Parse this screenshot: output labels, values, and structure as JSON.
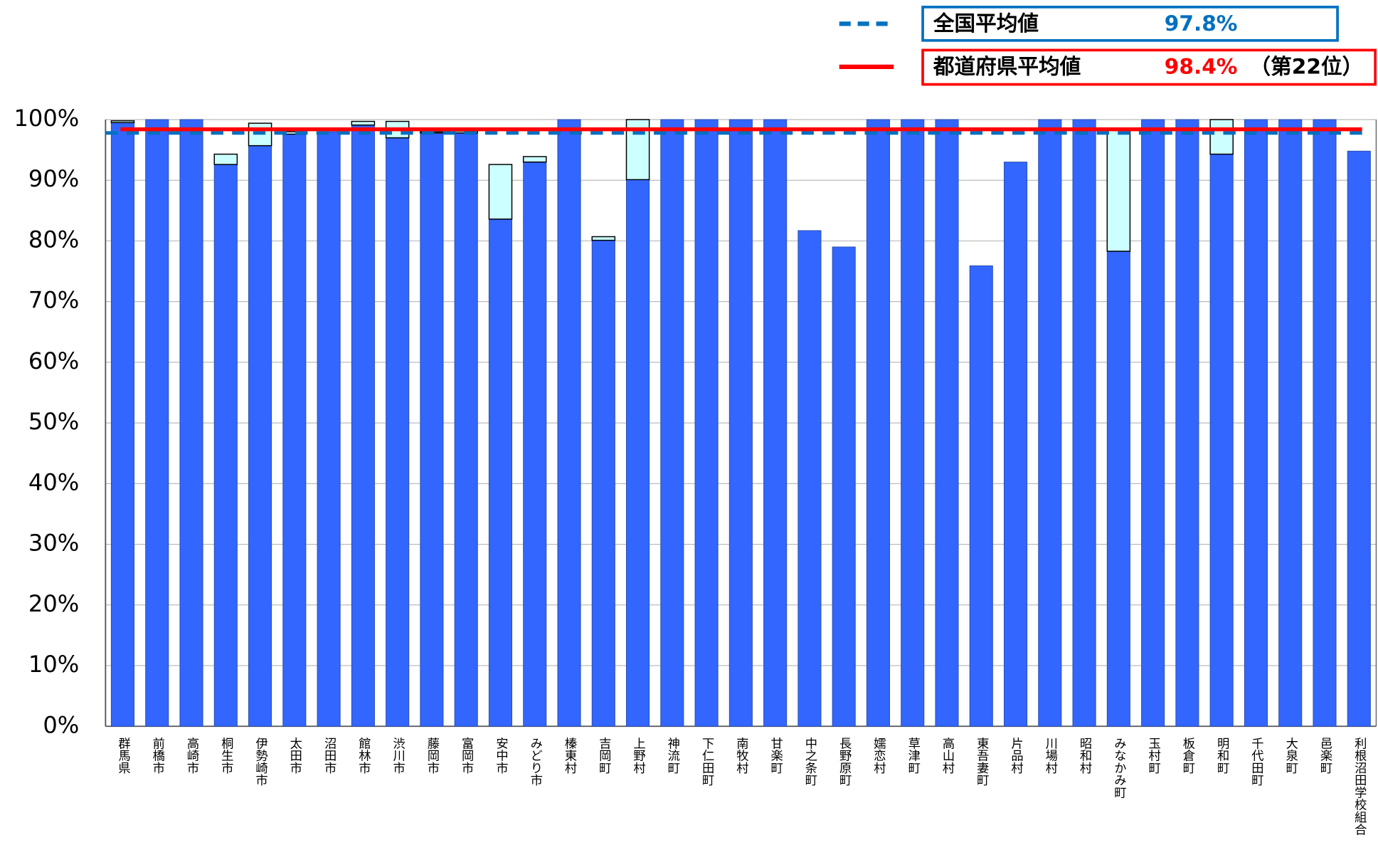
{
  "chart_data": {
    "type": "stacked_bar",
    "categories": [
      "群馬県",
      "前橋市",
      "高崎市",
      "桐生市",
      "伊勢崎市",
      "太田市",
      "沼田市",
      "館林市",
      "渋川市",
      "藤岡市",
      "富岡市",
      "安中市",
      "みどり市",
      "榛東村",
      "吉岡町",
      "上野村",
      "神流町",
      "下仁田町",
      "南牧村",
      "甘楽町",
      "中之条町",
      "長野原町",
      "嬬恋村",
      "草津町",
      "高山村",
      "東吾妻町",
      "片品村",
      "川場村",
      "昭和村",
      "みなかみ町",
      "玉村町",
      "板倉町",
      "明和町",
      "千代田町",
      "大泉町",
      "邑楽町",
      "利根沼田学校組合"
    ],
    "series": [
      {
        "color": "#3366ff",
        "values": [
          99.5,
          100,
          100,
          92.6,
          95.7,
          97.6,
          98.0,
          99.1,
          97.0,
          97.8,
          97.8,
          83.6,
          93.0,
          100,
          80.1,
          90.1,
          100,
          100,
          100,
          100,
          81.7,
          79.0,
          100,
          100,
          100,
          75.9,
          93.0,
          100,
          100,
          78.3,
          100,
          100,
          94.3,
          100,
          100,
          100,
          94.8
        ]
      },
      {
        "color": "#ccffff",
        "values": [
          0.3,
          0,
          0,
          1.7,
          3.7,
          0.4,
          0,
          0.6,
          2.7,
          0.2,
          0.3,
          9.0,
          0.9,
          0,
          0.6,
          9.9,
          0,
          0,
          0,
          0,
          0,
          0,
          0,
          0,
          0,
          0,
          0,
          0,
          0,
          20.1,
          0,
          0,
          5.7,
          0,
          0,
          0,
          0
        ]
      }
    ],
    "reference_lines": [
      {
        "name": "全国平均値",
        "value": 97.8,
        "value_label": "97.8%",
        "color": "#0070c0",
        "style": "dashed"
      },
      {
        "name": "都道府県平均値",
        "value": 98.4,
        "value_label": "98.4%",
        "note": "（第22位）",
        "color": "#ff0000",
        "style": "solid"
      }
    ],
    "ylim": [
      0,
      100
    ],
    "yticks": [
      {
        "value": 0,
        "label": "0%"
      },
      {
        "value": 10,
        "label": "10%"
      },
      {
        "value": 20,
        "label": "20%"
      },
      {
        "value": 30,
        "label": "30%"
      },
      {
        "value": 40,
        "label": "40%"
      },
      {
        "value": 50,
        "label": "50%"
      },
      {
        "value": 60,
        "label": "60%"
      },
      {
        "value": 70,
        "label": "70%"
      },
      {
        "value": 80,
        "label": "80%"
      },
      {
        "value": 90,
        "label": "90%"
      },
      {
        "value": 100,
        "label": "100%"
      }
    ],
    "grid": true
  }
}
